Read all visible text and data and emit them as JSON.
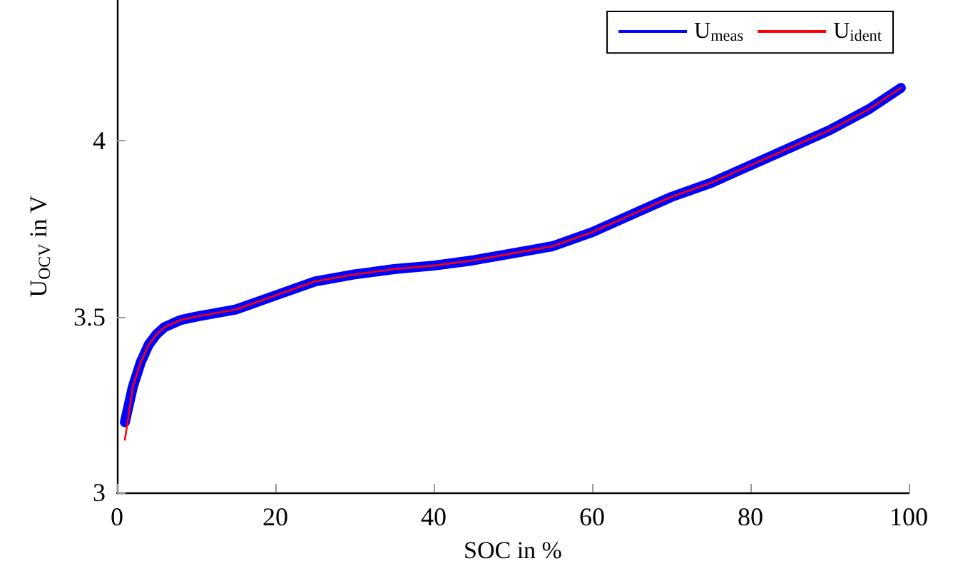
{
  "chart_data": {
    "type": "line",
    "xlabel": "SOC in %",
    "ylabel": "U$_{OCV}$ in V",
    "x": [
      1,
      2,
      3,
      4,
      5,
      6,
      8,
      10,
      15,
      20,
      25,
      30,
      35,
      40,
      45,
      50,
      55,
      60,
      65,
      70,
      75,
      80,
      85,
      90,
      95,
      99
    ],
    "series": [
      {
        "name": "U$_{meas}$",
        "color": "#0000ff",
        "values": [
          3.2,
          3.3,
          3.37,
          3.42,
          3.45,
          3.47,
          3.49,
          3.5,
          3.52,
          3.56,
          3.6,
          3.62,
          3.635,
          3.645,
          3.66,
          3.68,
          3.7,
          3.74,
          3.79,
          3.84,
          3.88,
          3.93,
          3.98,
          4.03,
          4.09,
          4.15
        ]
      },
      {
        "name": "U$_{ident}$",
        "color": "#ff0000",
        "values": [
          3.15,
          3.3,
          3.37,
          3.42,
          3.45,
          3.47,
          3.49,
          3.5,
          3.52,
          3.56,
          3.6,
          3.62,
          3.635,
          3.645,
          3.66,
          3.68,
          3.7,
          3.74,
          3.79,
          3.84,
          3.88,
          3.93,
          3.98,
          4.03,
          4.09,
          4.15
        ]
      }
    ],
    "xlim": [
      0,
      100
    ],
    "xticks": [
      0,
      20,
      40,
      60,
      80,
      100
    ],
    "ylim": [
      3,
      4.4
    ],
    "yticks": [
      3,
      3.5,
      4
    ],
    "grid": false,
    "legend": "top right",
    "marker": "none",
    "line_style": "solid"
  }
}
